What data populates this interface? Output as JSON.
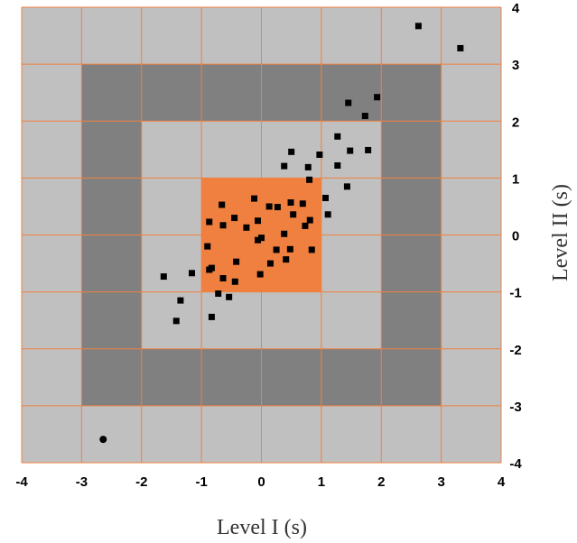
{
  "chart_data": {
    "type": "scatter",
    "xlabel": "Level I (s)",
    "ylabel": "Level II (s)",
    "xlim": [
      -4,
      4
    ],
    "ylim": [
      -4,
      4
    ],
    "x_ticks": [
      "-4",
      "-3",
      "-2",
      "-1",
      "0",
      "1",
      "2",
      "3",
      "4"
    ],
    "y_ticks": [
      "4",
      "3",
      "2",
      "1",
      "0",
      "-1",
      "-2",
      "-3",
      "-4"
    ],
    "grid": true,
    "zones": [
      {
        "name": "outer",
        "range": [
          -4,
          4
        ],
        "color": "#c0c0c0"
      },
      {
        "name": "band-3",
        "range": [
          -3,
          3
        ],
        "color": "#808080"
      },
      {
        "name": "band-2",
        "range": [
          -2,
          2
        ],
        "color": "#c0c0c0"
      },
      {
        "name": "center",
        "range": [
          -1,
          1
        ],
        "color": "#f08040"
      }
    ],
    "grid_color": "#f08040",
    "marker_color": "#000000",
    "series": [
      {
        "marker": "square",
        "points": [
          [
            2.62,
            3.67
          ],
          [
            3.32,
            3.28
          ],
          [
            1.93,
            2.42
          ],
          [
            1.45,
            2.32
          ],
          [
            1.73,
            2.09
          ],
          [
            1.27,
            1.73
          ],
          [
            1.48,
            1.48
          ],
          [
            1.78,
            1.49
          ],
          [
            1.27,
            1.22
          ],
          [
            0.5,
            1.46
          ],
          [
            0.38,
            1.21
          ],
          [
            0.78,
            1.19
          ],
          [
            0.97,
            1.41
          ],
          [
            0.8,
            0.97
          ],
          [
            1.43,
            0.85
          ],
          [
            1.07,
            0.65
          ],
          [
            1.11,
            0.36
          ],
          [
            -0.66,
            0.53
          ],
          [
            -0.12,
            0.64
          ],
          [
            0.13,
            0.5
          ],
          [
            0.27,
            0.49
          ],
          [
            0.49,
            0.57
          ],
          [
            0.69,
            0.55
          ],
          [
            0.53,
            0.36
          ],
          [
            -0.87,
            0.23
          ],
          [
            -0.64,
            0.17
          ],
          [
            -0.45,
            0.3
          ],
          [
            -0.25,
            0.13
          ],
          [
            -0.06,
            0.25
          ],
          [
            0.73,
            0.16
          ],
          [
            0.81,
            0.26
          ],
          [
            0.38,
            0.02
          ],
          [
            -0.9,
            -0.2
          ],
          [
            -0.42,
            -0.47
          ],
          [
            -0.06,
            -0.09
          ],
          [
            0.0,
            -0.05
          ],
          [
            0.25,
            -0.26
          ],
          [
            0.48,
            -0.25
          ],
          [
            0.84,
            -0.26
          ],
          [
            -1.16,
            -0.67
          ],
          [
            -0.87,
            -0.61
          ],
          [
            -0.83,
            -0.58
          ],
          [
            -0.64,
            -0.76
          ],
          [
            -0.44,
            -0.82
          ],
          [
            0.15,
            -0.5
          ],
          [
            0.41,
            -0.43
          ],
          [
            -0.02,
            -0.69
          ],
          [
            -0.72,
            -1.03
          ],
          [
            -0.54,
            -1.09
          ],
          [
            -1.63,
            -0.73
          ],
          [
            -1.35,
            -1.15
          ],
          [
            -1.42,
            -1.51
          ],
          [
            -0.83,
            -1.44
          ]
        ]
      },
      {
        "marker": "circle",
        "points": [
          [
            -2.64,
            -3.59
          ]
        ]
      }
    ]
  }
}
